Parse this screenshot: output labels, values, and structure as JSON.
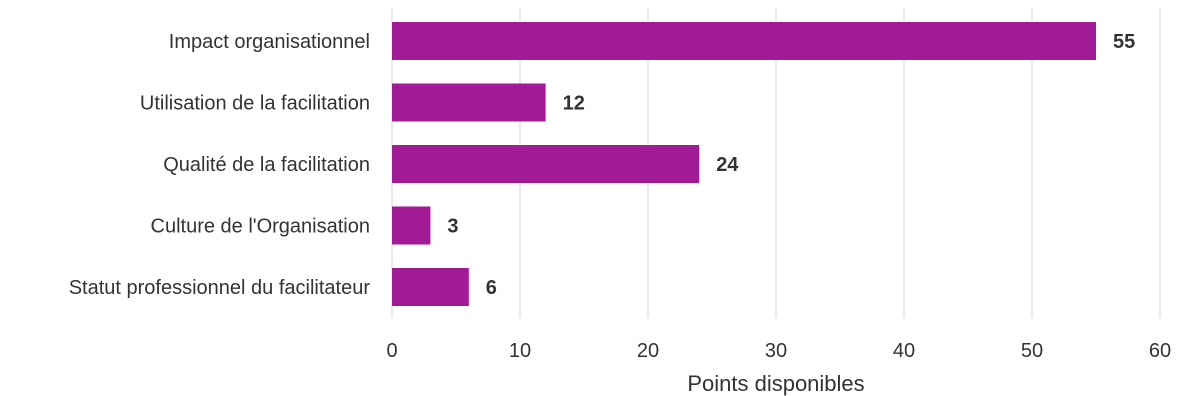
{
  "chart_data": {
    "type": "bar",
    "orientation": "horizontal",
    "title": "",
    "xlabel": "Points disponibles",
    "ylabel": "",
    "categories": [
      "Impact organisationnel",
      "Utilisation de la facilitation",
      "Qualité de la facilitation",
      "Culture de l'Organisation",
      "Statut professionnel du facilitateur"
    ],
    "values": [
      55,
      12,
      24,
      3,
      6
    ],
    "data_labels": [
      "55",
      "12",
      "24",
      "3",
      "6"
    ],
    "xlim": [
      0,
      60
    ],
    "xticks": [
      0,
      10,
      20,
      30,
      40,
      50,
      60
    ],
    "xtick_labels": [
      "0",
      "10",
      "20",
      "30",
      "40",
      "50",
      "60"
    ],
    "grid": "vertical",
    "legend": "none",
    "colors": {
      "bar": "#a11a96",
      "grid": "#dddddd",
      "text": "#333333"
    }
  }
}
